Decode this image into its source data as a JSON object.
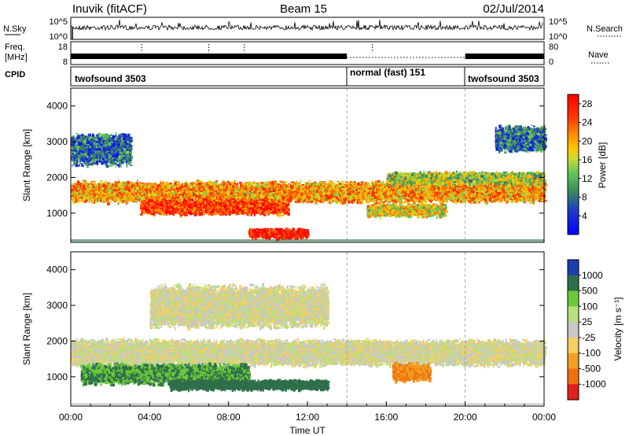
{
  "header": {
    "title_left": "Inuvik (fitACF)",
    "title_center": "Beam 15",
    "title_right": "02/Jul/2014"
  },
  "nsky_panel": {
    "label_left": "N.Sky",
    "label_right": "N.Search",
    "ytick_top": "10^5",
    "ytick_bottom": "10^0"
  },
  "freq_panel": {
    "label_line1": "Freq.",
    "label_line2": "[MHz]",
    "ytick_top": "18",
    "ytick_bottom": "8",
    "right_label": "Nave",
    "right_tick_top": "80",
    "right_tick_bottom": "0"
  },
  "cpid_panel": {
    "label": "CPID",
    "segments": [
      {
        "start_hour": 0,
        "end_hour": 14.0,
        "label": "twofsound 3503"
      },
      {
        "start_hour": 14.0,
        "end_hour": 20.0,
        "label": "normal (fast) 151"
      },
      {
        "start_hour": 20.0,
        "end_hour": 24.0,
        "label": "twofsound 3503"
      }
    ]
  },
  "time_axis": {
    "title": "Time UT",
    "tick_labels": [
      "00:00",
      "04:00",
      "08:00",
      "12:00",
      "16:00",
      "20:00",
      "00:00"
    ]
  },
  "chart_data": [
    {
      "type": "heatmap",
      "name": "power",
      "ylabel": "Slant Range [km]",
      "xlabel": "Time UT",
      "x_range_hours": [
        0,
        24
      ],
      "y_range_km": [
        180,
        4500
      ],
      "yticks": [
        1000,
        2000,
        3000,
        4000
      ],
      "colorbar": {
        "label": "Power [dB]",
        "range": [
          0,
          30
        ],
        "tick_labels": [
          "4",
          "8",
          "12",
          "16",
          "20",
          "24",
          "28"
        ],
        "tick_values": [
          4,
          8,
          12,
          16,
          20,
          24,
          28
        ]
      },
      "scatter_bands": [
        {
          "center_km": 1620,
          "width_km": 400,
          "start_hour": 0,
          "end_hour": 24,
          "power_db": 21
        },
        {
          "center_km": 1200,
          "width_km": 300,
          "start_hour": 3.5,
          "end_hour": 11,
          "power_db": 26
        },
        {
          "center_km": 450,
          "width_km": 200,
          "start_hour": 9,
          "end_hour": 12,
          "power_db": 29
        },
        {
          "center_km": 1100,
          "width_km": 250,
          "start_hour": 15,
          "end_hour": 19,
          "power_db": 18
        },
        {
          "center_km": 2000,
          "width_km": 250,
          "start_hour": 16,
          "end_hour": 24,
          "power_db": 15
        },
        {
          "center_km": 2800,
          "width_km": 600,
          "start_hour": 0,
          "end_hour": 3,
          "power_db": 8
        },
        {
          "center_km": 3100,
          "width_km": 500,
          "start_hour": 21.5,
          "end_hour": 24,
          "power_db": 8
        }
      ]
    },
    {
      "type": "heatmap",
      "name": "velocity",
      "ylabel": "Slant Range [km]",
      "xlabel": "Time UT",
      "x_range_hours": [
        0,
        24
      ],
      "y_range_km": [
        180,
        4500
      ],
      "yticks": [
        1000,
        2000,
        3000,
        4000
      ],
      "colorbar": {
        "label": "Velocity [m s⁻¹]",
        "tick_labels": [
          "1000",
          "500",
          "100",
          "25",
          "-25",
          "-100",
          "-500",
          "-1000"
        ]
      },
      "scatter_bands": [
        {
          "center_km": 1700,
          "width_km": 500,
          "start_hour": 0,
          "end_hour": 24,
          "velocity": 0
        },
        {
          "center_km": 1100,
          "width_km": 400,
          "start_hour": 0.5,
          "end_hour": 9,
          "velocity": 300
        },
        {
          "center_km": 800,
          "width_km": 200,
          "start_hour": 5,
          "end_hour": 13,
          "velocity": 600
        },
        {
          "center_km": 1150,
          "width_km": 350,
          "start_hour": 16.3,
          "end_hour": 18.2,
          "velocity": -300
        },
        {
          "center_km": 3000,
          "width_km": 800,
          "start_hour": 4,
          "end_hour": 13,
          "velocity": 0
        }
      ]
    }
  ]
}
